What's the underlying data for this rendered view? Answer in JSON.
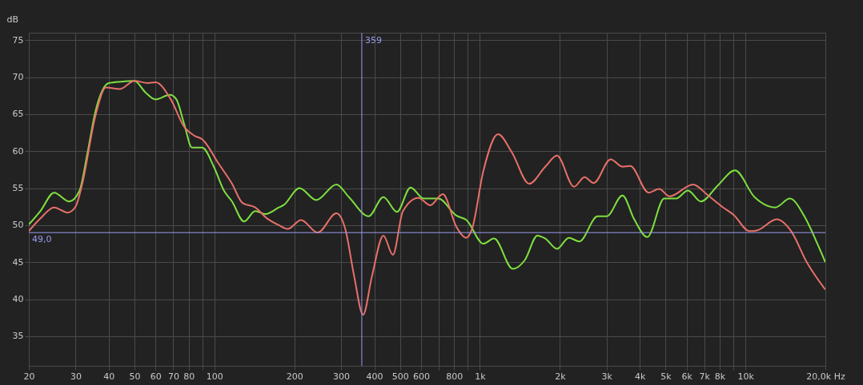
{
  "chart_data": {
    "type": "line",
    "ylabel": "dB",
    "log": "x",
    "grid": true,
    "marker": "none",
    "line_style": "solid",
    "xlim": [
      20,
      20000
    ],
    "ylim": [
      31,
      76
    ],
    "xticks": [
      20,
      30,
      40,
      50,
      60,
      70,
      80,
      {
        "value": 90,
        "label": null
      },
      100,
      200,
      300,
      400,
      500,
      600,
      {
        "value": 700,
        "label": null
      },
      800,
      {
        "value": 900,
        "label": null
      },
      {
        "value": 1000,
        "label": "1k"
      },
      {
        "value": 2000,
        "label": "2k"
      },
      {
        "value": 3000,
        "label": "3k"
      },
      {
        "value": 4000,
        "label": "4k"
      },
      {
        "value": 5000,
        "label": "5k"
      },
      {
        "value": 6000,
        "label": "6k"
      },
      {
        "value": 7000,
        "label": "7k"
      },
      {
        "value": 8000,
        "label": "8k"
      },
      {
        "value": 9000,
        "label": null
      },
      {
        "value": 10000,
        "label": "10k"
      },
      {
        "value": 20000,
        "label": "20,0k Hz"
      }
    ],
    "yticks": [
      35,
      40,
      45,
      50,
      55,
      60,
      65,
      70,
      75
    ],
    "ref_lines": [
      {
        "axis": "x",
        "value": 359,
        "label": "359",
        "color": "#9a9af0"
      },
      {
        "axis": "y",
        "value": 49.0,
        "label": "49,0",
        "color": "#9a9af0"
      }
    ],
    "series": [
      {
        "color": "#7ee040",
        "x": [
          20,
          22.1,
          24.9,
          28.4,
          31.0,
          33.2,
          35.6,
          40,
          44.7,
          50,
          54.8,
          60,
          68,
          71.9,
          76.9,
          82.3,
          90,
          99.5,
          108.9,
          116.5,
          129.3,
          142.4,
          155.5,
          175,
          182,
          209,
          242,
          288,
          321,
          381,
          433,
          487,
          548,
          614,
          697,
          815,
          890,
          1030,
          1130,
          1330,
          1477,
          1646,
          1762,
          1951,
          2162,
          2367,
          2774,
          3002,
          3443,
          3811,
          4270,
          4945,
          5483,
          6070,
          6800,
          7880,
          9130,
          10820,
          12970,
          14700,
          16670,
          18660,
          20000
        ],
        "values": [
          50.1,
          51.9,
          54.4,
          53.2,
          54.6,
          59.6,
          65.3,
          69.2,
          69.4,
          69.5,
          68.0,
          67.0,
          67.6,
          67.0,
          63.7,
          60.5,
          60.5,
          57.9,
          54.6,
          53.2,
          50.5,
          51.9,
          51.5,
          52.4,
          52.7,
          55.0,
          53.4,
          55.5,
          53.8,
          51.2,
          53.8,
          51.8,
          55.1,
          53.6,
          53.6,
          51.3,
          50.7,
          47.5,
          48.2,
          44.1,
          45.3,
          48.6,
          48.2,
          46.8,
          48.3,
          47.8,
          51.2,
          51.2,
          54.0,
          50.8,
          48.4,
          53.6,
          53.6,
          54.7,
          53.2,
          55.4,
          57.4,
          53.8,
          52.4,
          53.6,
          51.2,
          47.5,
          45.0
        ]
      },
      {
        "color": "#e8706a",
        "x": [
          20,
          22.1,
          24.9,
          28.0,
          30.0,
          31.8,
          35.6,
          39.0,
          44.1,
          50,
          56.1,
          60,
          68.5,
          76.9,
          84.0,
          90,
          103.8,
          116.5,
          127.6,
          142.4,
          158.0,
          175,
          189,
          212,
          245,
          288,
          311,
          336,
          363,
          392,
          433,
          470,
          513,
          586,
          650,
          725,
          815,
          888,
          934,
          1030,
          1170,
          1317,
          1533,
          1762,
          1951,
          2262,
          2477,
          2683,
          3106,
          3443,
          3682,
          4320,
          4730,
          5175,
          6350,
          7190,
          8240,
          9025,
          10350,
          11070,
          13120,
          14860,
          17020,
          20000
        ],
        "values": [
          49.2,
          50.9,
          52.4,
          51.7,
          52.5,
          55.6,
          64.7,
          68.6,
          68.4,
          69.5,
          69.2,
          69.3,
          67.0,
          63.3,
          62.1,
          61.6,
          58.3,
          55.6,
          53.0,
          52.4,
          50.9,
          50.0,
          49.5,
          50.7,
          49.0,
          51.6,
          49.5,
          43.1,
          37.9,
          43.1,
          48.6,
          46.0,
          51.9,
          53.7,
          52.7,
          54.2,
          49.8,
          48.3,
          49.5,
          57.3,
          62.3,
          59.9,
          55.6,
          57.9,
          59.4,
          55.2,
          56.5,
          55.7,
          58.9,
          57.9,
          58.0,
          54.4,
          54.9,
          53.9,
          55.5,
          54.1,
          52.4,
          51.4,
          49.2,
          49.3,
          50.8,
          49.2,
          45.0,
          41.3
        ]
      }
    ]
  }
}
